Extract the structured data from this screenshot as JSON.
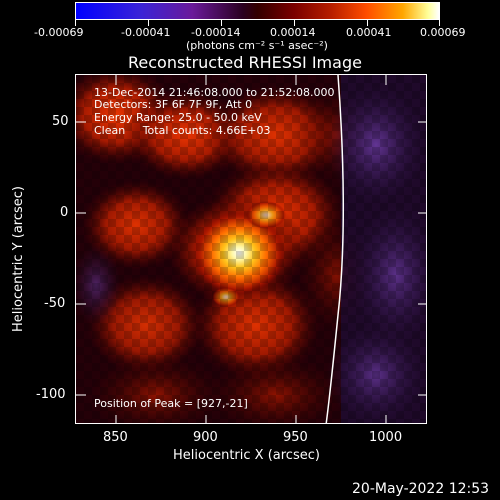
{
  "colorbar": {
    "tick_labels": [
      "-0.00069",
      "-0.00041",
      "-0.00014",
      "0.00014",
      "0.00041",
      "0.00069"
    ],
    "units": "(photons cm⁻² s⁻¹ asec⁻²)"
  },
  "title": "Reconstructed RHESSI Image",
  "info": {
    "time_range": "13-Dec-2014 21:46:08.000 to 21:52:08.000",
    "detectors": "Detectors: 3F 6F 7F 9F, Att 0",
    "energy_range": "Energy Range: 25.0 - 50.0 keV",
    "clean_counts": "Clean     Total counts: 4.66E+03",
    "peak_position": "Position of Peak = [927,-21]"
  },
  "axes": {
    "x_title": "Heliocentric X (arcsec)",
    "y_title": "Heliocentric Y (arcsec)",
    "x_tick_labels": [
      "850",
      "900",
      "950",
      "1000"
    ],
    "y_tick_labels": [
      "50",
      "0",
      "-50",
      "-100"
    ]
  },
  "timestamp": "20-May-2022 12:53",
  "colors": {
    "background": "#000000",
    "text": "#ffffff",
    "limb": "#ffffff"
  }
}
